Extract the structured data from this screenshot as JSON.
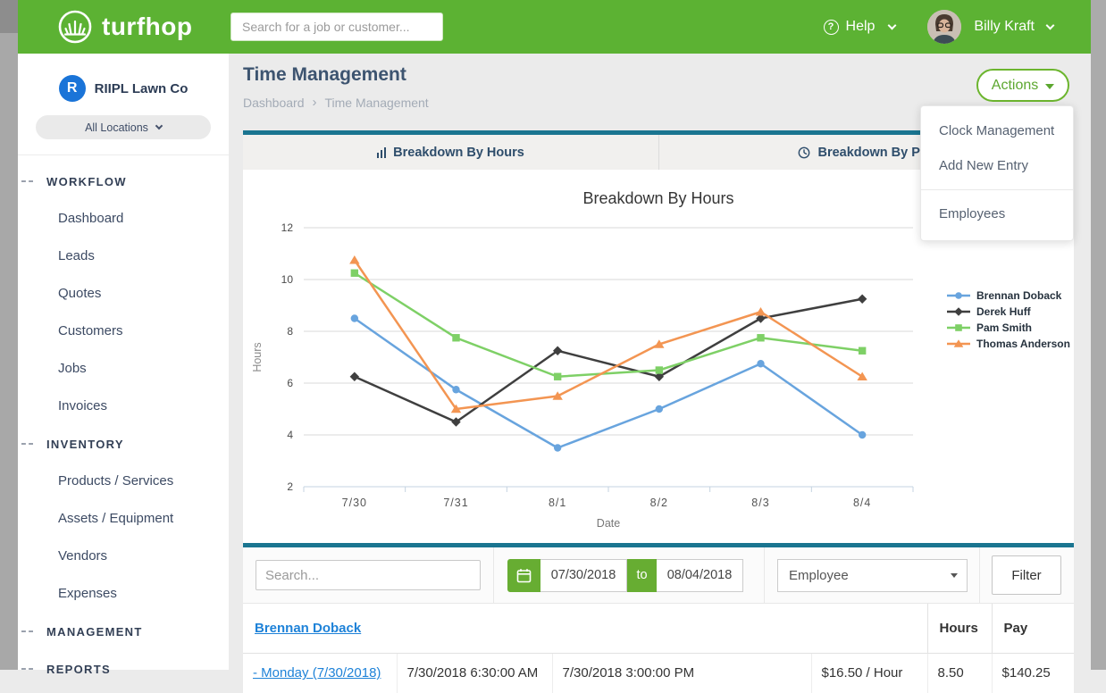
{
  "header": {
    "brand": "turfhop",
    "search_placeholder": "Search for a job or customer...",
    "help_label": "Help",
    "help_glyph": "?",
    "user_name": "Billy Kraft"
  },
  "sidebar": {
    "company_initial": "R",
    "company_name": "RIIPL Lawn Co",
    "locations_label": "All Locations",
    "sections": [
      {
        "label": "WORKFLOW",
        "items": [
          "Dashboard",
          "Leads",
          "Quotes",
          "Customers",
          "Jobs",
          "Invoices"
        ]
      },
      {
        "label": "INVENTORY",
        "items": [
          "Products / Services",
          "Assets / Equipment",
          "Vendors",
          "Expenses"
        ]
      },
      {
        "label": "MANAGEMENT",
        "items": []
      },
      {
        "label": "REPORTS",
        "items": []
      }
    ]
  },
  "page": {
    "title": "Time Management",
    "breadcrumb": [
      "Dashboard",
      "Time Management"
    ],
    "breadcrumb_separator": "›",
    "actions_label": "Actions",
    "actions_menu": [
      "Clock Management",
      "Add New Entry",
      "Employees"
    ]
  },
  "tabs": [
    {
      "label": "Breakdown By Hours",
      "icon": "bar-chart-icon"
    },
    {
      "label": "Breakdown By Pay",
      "icon": "clock-icon"
    }
  ],
  "chart_data": {
    "type": "line",
    "title": "Breakdown By Hours",
    "xlabel": "Date",
    "ylabel": "Hours",
    "x": [
      "7/30",
      "7/31",
      "8/1",
      "8/2",
      "8/3",
      "8/4"
    ],
    "ylim": [
      2,
      12
    ],
    "yticks": [
      2,
      4,
      6,
      8,
      10,
      12
    ],
    "grid": true,
    "legend_position": "right",
    "series": [
      {
        "name": "Brennan Doback",
        "color": "#68a4de",
        "marker": "circle",
        "values": [
          8.5,
          5.75,
          3.5,
          5.0,
          6.75,
          4.0
        ]
      },
      {
        "name": "Derek Huff",
        "color": "#3f3f3f",
        "color_text": "dark",
        "marker": "diamond",
        "values": [
          6.25,
          4.5,
          7.25,
          6.25,
          8.5,
          9.25
        ]
      },
      {
        "name": "Pam Smith",
        "color": "#7ed066",
        "marker": "square",
        "values": [
          10.25,
          7.75,
          6.25,
          6.5,
          7.75,
          7.25
        ]
      },
      {
        "name": "Thomas Anderson",
        "color": "#f39552",
        "marker": "triangle",
        "values": [
          10.75,
          5.0,
          5.5,
          7.5,
          8.75,
          6.25
        ]
      }
    ]
  },
  "filters": {
    "search_placeholder": "Search...",
    "date_from": "07/30/2018",
    "date_to_label": "to",
    "date_to": "08/04/2018",
    "employee_select": "Employee",
    "filter_button": "Filter"
  },
  "table": {
    "group_header": "Brennan Doback",
    "columns": {
      "hours": "Hours",
      "pay": "Pay"
    },
    "rows": [
      {
        "day": "- Monday (7/30/2018)",
        "clock_in": "7/30/2018 6:30:00 AM",
        "clock_out": "7/30/2018 3:00:00 PM",
        "rate": "$16.50 / Hour",
        "hours": "8.50",
        "pay": "$140.25"
      }
    ]
  },
  "colors": {
    "brand_green": "#5cb233",
    "accent_green": "#67ad32",
    "teal": "#1a7590",
    "link_blue": "#1e82d8"
  }
}
